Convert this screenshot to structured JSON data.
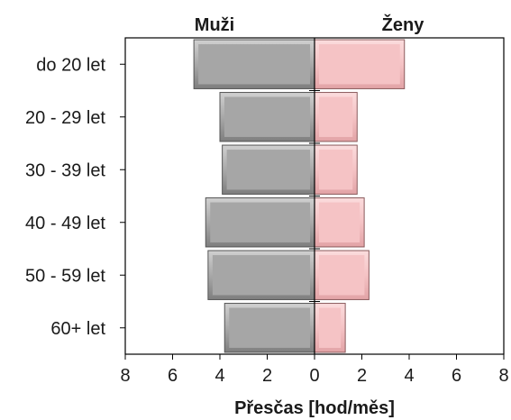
{
  "chart_data": {
    "type": "bar",
    "orientation": "horizontal",
    "layout": "population-pyramid",
    "categories": [
      "do 20 let",
      "20 - 29 let",
      "30 - 39 let",
      "40 - 49 let",
      "50 - 59 let",
      "60+ let"
    ],
    "series": [
      {
        "name": "Muži",
        "values": [
          5.1,
          4.0,
          3.9,
          4.6,
          4.5,
          3.8
        ],
        "color": "#a6a6a6",
        "side": "left"
      },
      {
        "name": "Ženy",
        "values": [
          3.8,
          1.8,
          1.8,
          2.1,
          2.3,
          1.3
        ],
        "color": "#f5c3c5",
        "side": "right"
      }
    ],
    "xlabel": "Přesčas [hod/měs]",
    "xlim": [
      -8,
      8
    ],
    "xticks": [
      -8,
      -6,
      -4,
      -2,
      0,
      2,
      4,
      6,
      8
    ],
    "xtick_labels": [
      "8",
      "6",
      "4",
      "2",
      "0",
      "2",
      "4",
      "6",
      "8"
    ],
    "grid": false,
    "legend": "none"
  }
}
